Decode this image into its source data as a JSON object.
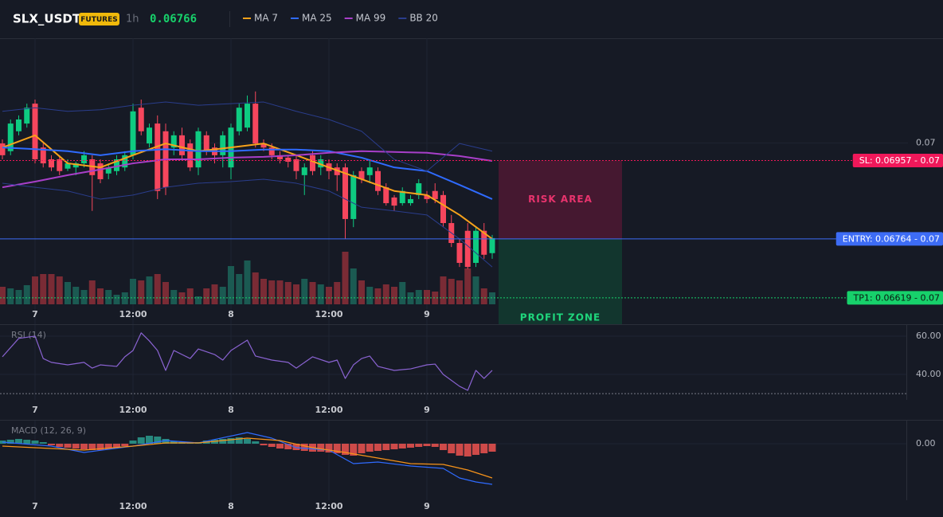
{
  "header": {
    "symbol": "SLX_USDT",
    "badge": "FUTURES",
    "interval": "1h",
    "price": "0.06766"
  },
  "chart_data": [
    {
      "type": "candlestick",
      "categories": [
        null,
        null,
        null,
        null,
        "7",
        null,
        null,
        null,
        null,
        null,
        null,
        null,
        null,
        null,
        null,
        null,
        "12:00",
        null,
        null,
        null,
        null,
        null,
        null,
        null,
        null,
        null,
        null,
        null,
        "8",
        null,
        null,
        null,
        null,
        null,
        null,
        null,
        null,
        null,
        null,
        null,
        "12:00",
        null,
        null,
        null,
        null,
        null,
        null,
        null,
        null,
        null,
        null,
        null,
        "9",
        null,
        null,
        null,
        null,
        null,
        null,
        null,
        null
      ],
      "open": [
        0.06999,
        0.0698,
        0.07029,
        0.07048,
        0.07097,
        0.06989,
        0.0696,
        0.0696,
        0.06937,
        0.0694,
        0.0695,
        0.0696,
        0.0695,
        0.06925,
        0.06931,
        0.0694,
        0.0697,
        0.07087,
        0.06999,
        0.07048,
        0.07029,
        0.06989,
        0.07019,
        0.06999,
        0.0694,
        0.07019,
        0.06989,
        0.0697,
        0.0694,
        0.07029,
        0.07038,
        0.07097,
        0.06999,
        0.06989,
        0.0697,
        0.06964,
        0.0696,
        0.06921,
        0.0697,
        0.0694,
        0.0695,
        0.0694,
        0.0694,
        0.06813,
        0.06931,
        0.06921,
        0.06931,
        0.06891,
        0.06866,
        0.06852,
        0.06852,
        0.06872,
        0.06872,
        0.06882,
        0.06872,
        0.06803,
        0.06754,
        0.06784,
        0.06705,
        0.06784,
        0.06729
      ],
      "high": [
        0.07009,
        0.07058,
        0.07068,
        0.07097,
        0.07107,
        0.06999,
        0.0697,
        0.0697,
        0.0696,
        0.06954,
        0.0698,
        0.0697,
        0.0696,
        0.0695,
        0.0697,
        0.0698,
        0.07097,
        0.07107,
        0.07048,
        0.07068,
        0.07048,
        0.07029,
        0.07038,
        0.07009,
        0.07038,
        0.07029,
        0.06999,
        0.07029,
        0.07048,
        0.07097,
        0.07117,
        0.07127,
        0.07009,
        0.06999,
        0.0698,
        0.0697,
        0.0697,
        0.0695,
        0.0698,
        0.0697,
        0.0696,
        0.0695,
        0.0695,
        0.06931,
        0.0694,
        0.0696,
        0.0694,
        0.06901,
        0.06872,
        0.06891,
        0.06872,
        0.06911,
        0.06882,
        0.06901,
        0.06882,
        0.06823,
        0.06764,
        0.06803,
        0.06793,
        0.06803,
        0.06774
      ],
      "low": [
        0.0696,
        0.0697,
        0.07019,
        0.07038,
        0.0695,
        0.0694,
        0.06931,
        0.06921,
        0.06931,
        0.06921,
        0.0694,
        0.06833,
        0.06901,
        0.06911,
        0.06921,
        0.06931,
        0.0696,
        0.07019,
        0.06989,
        0.06862,
        0.06872,
        0.0697,
        0.0696,
        0.06931,
        0.06921,
        0.0697,
        0.0695,
        0.0694,
        0.06911,
        0.07019,
        0.07029,
        0.06989,
        0.0698,
        0.0696,
        0.0695,
        0.0694,
        0.06911,
        0.06872,
        0.06921,
        0.06921,
        0.06911,
        0.06882,
        0.06764,
        0.06793,
        0.06901,
        0.06901,
        0.06872,
        0.06846,
        0.06833,
        0.06846,
        0.06846,
        0.06862,
        0.06852,
        0.06852,
        0.06793,
        0.06744,
        0.06695,
        0.0669,
        0.06695,
        0.06715,
        0.06715
      ],
      "close": [
        0.0697,
        0.07048,
        0.07058,
        0.07087,
        0.0696,
        0.0695,
        0.0694,
        0.06931,
        0.0695,
        0.0695,
        0.0697,
        0.06921,
        0.06911,
        0.0694,
        0.0696,
        0.0697,
        0.07078,
        0.07029,
        0.07038,
        0.06882,
        0.06891,
        0.07019,
        0.0697,
        0.0694,
        0.07029,
        0.0698,
        0.0697,
        0.07019,
        0.07038,
        0.07087,
        0.07097,
        0.06999,
        0.06989,
        0.0697,
        0.0696,
        0.06954,
        0.06931,
        0.0694,
        0.06931,
        0.0696,
        0.06931,
        0.06921,
        0.06813,
        0.06921,
        0.06911,
        0.0694,
        0.06882,
        0.06852,
        0.06846,
        0.06882,
        0.06862,
        0.06901,
        0.06862,
        0.06862,
        0.06803,
        0.06754,
        0.06705,
        0.06695,
        0.06784,
        0.06725,
        0.06766
      ],
      "volume": [
        22,
        20,
        18,
        24,
        35,
        38,
        38,
        35,
        28,
        22,
        18,
        30,
        20,
        18,
        12,
        15,
        32,
        30,
        35,
        38,
        28,
        18,
        15,
        20,
        10,
        20,
        25,
        22,
        48,
        38,
        55,
        40,
        32,
        30,
        30,
        28,
        25,
        32,
        28,
        25,
        22,
        28,
        66,
        45,
        30,
        22,
        20,
        25,
        22,
        28,
        15,
        18,
        18,
        16,
        35,
        32,
        30,
        45,
        35,
        20,
        15
      ],
      "up_color": "#0ecb81",
      "down_color": "#f6465d",
      "volume_up_color": "#1b5a52",
      "volume_down_color": "#7a2b35",
      "series": [
        {
          "name": "MA 7",
          "color": "#f7a21b",
          "x": [
            0,
            4,
            8,
            12,
            16,
            20,
            24,
            28,
            32,
            36,
            40,
            44,
            48,
            52,
            56,
            60
          ],
          "values": [
            0.06989,
            0.07019,
            0.0695,
            0.0694,
            0.0697,
            0.06999,
            0.0698,
            0.06989,
            0.06999,
            0.0697,
            0.0694,
            0.06911,
            0.06882,
            0.06872,
            0.06823,
            0.06764
          ]
        },
        {
          "name": "MA 25",
          "color": "#2f6bff",
          "x": [
            0,
            4,
            8,
            12,
            16,
            20,
            24,
            28,
            32,
            36,
            40,
            44,
            48,
            52,
            56,
            60
          ],
          "values": [
            0.06989,
            0.06985,
            0.0698,
            0.0697,
            0.0698,
            0.06985,
            0.0698,
            0.0698,
            0.06984,
            0.06984,
            0.0698,
            0.06964,
            0.0694,
            0.06931,
            0.06897,
            0.06862
          ]
        },
        {
          "name": "MA 99",
          "color": "#a83fc9",
          "x": [
            0,
            4,
            8,
            12,
            16,
            20,
            24,
            28,
            32,
            36,
            40,
            44,
            48,
            52,
            56,
            60
          ],
          "values": [
            0.06891,
            0.06905,
            0.06921,
            0.06935,
            0.0695,
            0.0696,
            0.0696,
            0.06964,
            0.06966,
            0.0697,
            0.06976,
            0.0698,
            0.06978,
            0.06976,
            0.06968,
            0.06956
          ]
        },
        {
          "name": "BB 20",
          "color": "#2a3d8c",
          "x": [
            0,
            4,
            8,
            12,
            16,
            20,
            24,
            28,
            32,
            36,
            40,
            44,
            48,
            52,
            56,
            60
          ],
          "upper": [
            0.07078,
            0.07087,
            0.07078,
            0.07082,
            0.07093,
            0.07101,
            0.07093,
            0.07097,
            0.07101,
            0.07078,
            0.07058,
            0.07029,
            0.0696,
            0.06931,
            0.06999,
            0.0698
          ],
          "lower": [
            0.06901,
            0.06891,
            0.06882,
            0.06862,
            0.06872,
            0.06891,
            0.06901,
            0.06905,
            0.06911,
            0.06901,
            0.06882,
            0.06842,
            0.06833,
            0.06823,
            0.06764,
            0.06695
          ]
        }
      ],
      "ylim": [
        0.06554,
        0.07258
      ],
      "yticks": [
        0.07
      ],
      "grid": true,
      "levels": [
        {
          "value": 0.06957,
          "label": "SL: 0.06957 - 0.07",
          "color": "#f0185a",
          "text_color": "#ffffff",
          "dash": true
        },
        {
          "value": 0.06764,
          "label": "ENTRY: 0.06764 - 0.07",
          "color": "#3d6cf5",
          "text_color": "#ffffff",
          "dash": false
        },
        {
          "value": 0.06619,
          "label": "TP1: 0.06619 - 0.07",
          "color": "#17d16b",
          "text_color": "#0b1a12",
          "dash": true
        }
      ],
      "zones": [
        {
          "label": "RISK AREA",
          "from": 0.06957,
          "to": 0.06764,
          "color": "#4a1832",
          "label_color": "#e8336d"
        },
        {
          "label": "PROFIT ZONE",
          "from": 0.06764,
          "color": "#123a30",
          "label_color": "#1fd67c"
        }
      ]
    },
    {
      "type": "line",
      "title": "RSI (14)",
      "categories": [
        null,
        null,
        null,
        null,
        "7",
        null,
        null,
        null,
        null,
        null,
        null,
        null,
        null,
        null,
        null,
        null,
        "12:00",
        null,
        null,
        null,
        null,
        null,
        null,
        null,
        null,
        null,
        null,
        null,
        "8",
        null,
        null,
        null,
        null,
        null,
        null,
        null,
        null,
        null,
        null,
        null,
        "12:00",
        null,
        null,
        null,
        null,
        null,
        null,
        null,
        null,
        null,
        null,
        null,
        "9",
        null,
        null,
        null,
        null,
        null,
        null,
        null,
        null
      ],
      "series": [
        {
          "color": "#8a63d2",
          "x": [
            0,
            2,
            4,
            5,
            6,
            8,
            10,
            11,
            12,
            14,
            15,
            16,
            17,
            18,
            19,
            20,
            21,
            22,
            23,
            24,
            26,
            27,
            28,
            30,
            31,
            33,
            35,
            36,
            38,
            40,
            41,
            42,
            43,
            44,
            45,
            46,
            48,
            50,
            52,
            53,
            54,
            56,
            57,
            58,
            59,
            60
          ],
          "values": [
            49.2,
            58.8,
            60.0,
            48.3,
            46.3,
            45.0,
            46.3,
            43.3,
            45.0,
            44.2,
            49.2,
            52.5,
            61.7,
            57.5,
            52.5,
            42.1,
            52.5,
            50.4,
            48.3,
            53.3,
            50.4,
            47.5,
            52.5,
            57.9,
            49.6,
            47.5,
            46.3,
            43.3,
            49.2,
            46.3,
            47.5,
            37.9,
            45.0,
            48.3,
            49.6,
            44.2,
            42.1,
            42.9,
            45.0,
            45.4,
            40.0,
            33.8,
            31.7,
            42.1,
            37.9,
            42.1
          ]
        }
      ],
      "ylim": [
        26.7,
        65.8
      ],
      "yticks": [
        {
          "value": 40,
          "label": "40.00"
        },
        {
          "value": 60,
          "label": "60.00"
        }
      ],
      "hlines": [
        30
      ]
    },
    {
      "type": "bar",
      "title": "MACD (12, 26, 9)",
      "categories": [
        null,
        null,
        null,
        null,
        "7",
        null,
        null,
        null,
        null,
        null,
        null,
        null,
        null,
        null,
        null,
        null,
        "12:00",
        null,
        null,
        null,
        null,
        null,
        null,
        null,
        null,
        null,
        null,
        null,
        "8",
        null,
        null,
        null,
        null,
        null,
        null,
        null,
        null,
        null,
        null,
        null,
        "12:00",
        null,
        null,
        null,
        null,
        null,
        null,
        null,
        null,
        null,
        null,
        null,
        "9",
        null,
        null,
        null,
        null,
        null,
        null,
        null,
        null
      ],
      "values": [
        4e-05,
        5e-05,
        6e-05,
        5e-05,
        4e-05,
        2e-05,
        -2e-05,
        -4e-05,
        -5e-05,
        -6e-05,
        -7e-05,
        -8e-05,
        -8e-05,
        -7e-05,
        -5e-05,
        -3e-05,
        4e-05,
        8e-05,
        0.0001,
        9e-05,
        6e-05,
        3e-05,
        2e-05,
        1e-05,
        2e-05,
        4e-05,
        5e-05,
        6e-05,
        7e-05,
        8e-05,
        6e-05,
        3e-05,
        -2e-05,
        -4e-05,
        -6e-05,
        -7e-05,
        -8e-05,
        -9e-05,
        -0.0001,
        -0.0001,
        -0.00011,
        -0.00012,
        -0.00014,
        -0.00015,
        -0.00012,
        -0.0001,
        -9e-05,
        -8e-05,
        -7e-05,
        -6e-05,
        -5e-05,
        -4e-05,
        -3e-05,
        -4e-05,
        -8e-05,
        -0.00012,
        -0.00015,
        -0.00016,
        -0.00014,
        -0.00012,
        -0.0001
      ],
      "up_color": "#2a9d8f",
      "down_color": "#ef5350",
      "series": [
        {
          "color": "#2f6bff",
          "x": [
            0,
            6,
            10,
            16,
            20,
            24,
            30,
            33,
            36,
            40,
            43,
            46,
            50,
            54,
            56,
            58,
            60
          ],
          "values": [
            2e-05,
            -3e-05,
            -0.00011,
            -3e-05,
            4e-05,
            1e-05,
            0.00014,
            7e-05,
            -5e-05,
            -8e-05,
            -0.00025,
            -0.00023,
            -0.00028,
            -0.00031,
            -0.00043,
            -0.00048,
            -0.00051
          ]
        },
        {
          "color": "#f7931a",
          "x": [
            0,
            10,
            16,
            20,
            24,
            30,
            34,
            38,
            42,
            46,
            50,
            54,
            57,
            60
          ],
          "values": [
            -3e-05,
            -8e-05,
            -3e-05,
            1e-05,
            1e-05,
            7e-05,
            4e-05,
            -5e-05,
            -0.00011,
            -0.00018,
            -0.00025,
            -0.00026,
            -0.00033,
            -0.00043
          ]
        }
      ],
      "ylim": [
        -0.00071,
        0.00029
      ],
      "yticks": [
        {
          "value": 0,
          "label": "0.00"
        }
      ]
    }
  ]
}
